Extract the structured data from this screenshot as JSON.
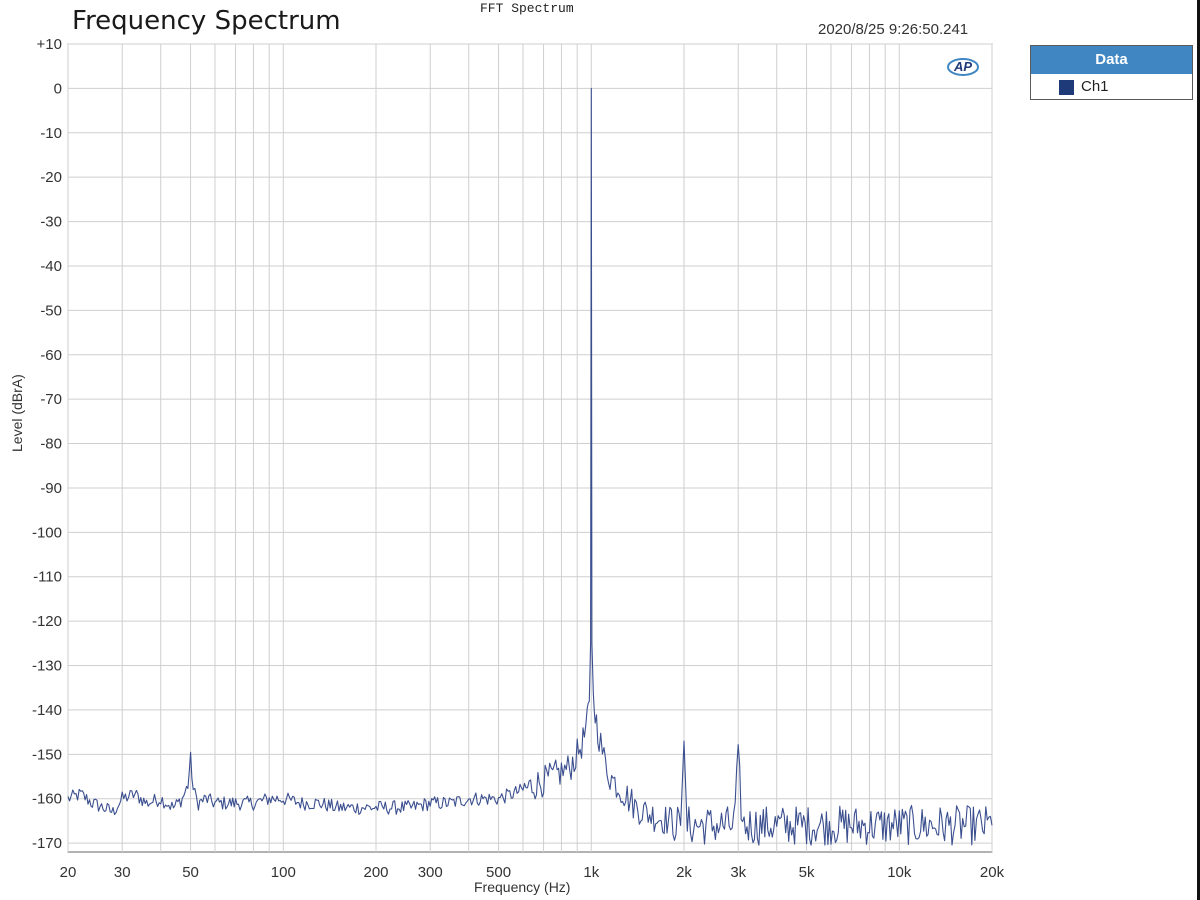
{
  "header": {
    "title": "Frequency Spectrum",
    "window_title": "FFT Spectrum",
    "timestamp": "2020/8/25 9:26:50.241"
  },
  "legend": {
    "title": "Data",
    "items": [
      {
        "label": "Ch1",
        "color": "#1e3a78"
      }
    ]
  },
  "logo": {
    "text": "AP"
  },
  "colors": {
    "trace": "#3b4f8f",
    "grid": "#cfcfcf",
    "legend_header": "#3f86c2"
  },
  "chart_data": {
    "type": "line",
    "xlabel": "Frequency (Hz)",
    "ylabel": "Level (dBrA)",
    "xscale": "log",
    "xlim": [
      20,
      20000
    ],
    "ylim": [
      -172,
      10
    ],
    "grid": true,
    "legend_placement": "outside-top-right",
    "x_ticks": [
      {
        "value": 20,
        "label": "20"
      },
      {
        "value": 30,
        "label": "30"
      },
      {
        "value": 50,
        "label": "50"
      },
      {
        "value": 100,
        "label": "100"
      },
      {
        "value": 200,
        "label": "200"
      },
      {
        "value": 300,
        "label": "300"
      },
      {
        "value": 500,
        "label": "500"
      },
      {
        "value": 1000,
        "label": "1k"
      },
      {
        "value": 2000,
        "label": "2k"
      },
      {
        "value": 3000,
        "label": "3k"
      },
      {
        "value": 5000,
        "label": "5k"
      },
      {
        "value": 10000,
        "label": "10k"
      },
      {
        "value": 20000,
        "label": "20k"
      }
    ],
    "y_ticks": [
      {
        "value": 10,
        "label": "+10"
      },
      {
        "value": 0,
        "label": "0"
      },
      {
        "value": -10,
        "label": "-10"
      },
      {
        "value": -20,
        "label": "-20"
      },
      {
        "value": -30,
        "label": "-30"
      },
      {
        "value": -40,
        "label": "-40"
      },
      {
        "value": -50,
        "label": "-50"
      },
      {
        "value": -60,
        "label": "-60"
      },
      {
        "value": -70,
        "label": "-70"
      },
      {
        "value": -80,
        "label": "-80"
      },
      {
        "value": -90,
        "label": "-90"
      },
      {
        "value": -100,
        "label": "-100"
      },
      {
        "value": -110,
        "label": "-110"
      },
      {
        "value": -120,
        "label": "-120"
      },
      {
        "value": -130,
        "label": "-130"
      },
      {
        "value": -140,
        "label": "-140"
      },
      {
        "value": -150,
        "label": "-150"
      },
      {
        "value": -160,
        "label": "-160"
      },
      {
        "value": -170,
        "label": "-170"
      }
    ],
    "series": [
      {
        "name": "Ch1",
        "x": [
          20,
          22,
          24,
          26,
          28,
          30,
          33,
          36,
          40,
          44,
          47,
          49,
          50,
          51,
          53,
          56,
          60,
          65,
          70,
          80,
          90,
          100,
          115,
          130,
          150,
          170,
          200,
          230,
          260,
          300,
          350,
          400,
          450,
          500,
          550,
          600,
          650,
          700,
          750,
          800,
          850,
          900,
          940,
          970,
          985,
          995,
          1000,
          1005,
          1015,
          1030,
          1060,
          1100,
          1150,
          1250,
          1400,
          1600,
          1800,
          1950,
          2000,
          2050,
          2200,
          2500,
          2900,
          3000,
          3100,
          3500,
          4000,
          5000,
          6000,
          7000,
          8000,
          10000,
          12000,
          15000,
          17000,
          20000
        ],
        "y": [
          -160,
          -159,
          -161,
          -162,
          -163,
          -160,
          -159,
          -161,
          -160,
          -162,
          -160,
          -157,
          -151,
          -158,
          -161,
          -160,
          -161,
          -161,
          -161,
          -161,
          -160,
          -160,
          -161,
          -161,
          -162,
          -162,
          -162,
          -162,
          -162,
          -161,
          -161,
          -160,
          -160,
          -160,
          -159,
          -158,
          -157,
          -156,
          -155,
          -154,
          -153,
          -150,
          -147,
          -143,
          -138,
          -125,
          0,
          -125,
          -138,
          -141,
          -146,
          -151,
          -155,
          -158,
          -162,
          -164,
          -165,
          -166,
          -147,
          -166,
          -166,
          -166,
          -166,
          -152,
          -166,
          -166,
          -166,
          -166,
          -166,
          -166,
          -166,
          -166,
          -166,
          -166,
          -166,
          -166
        ]
      }
    ]
  }
}
